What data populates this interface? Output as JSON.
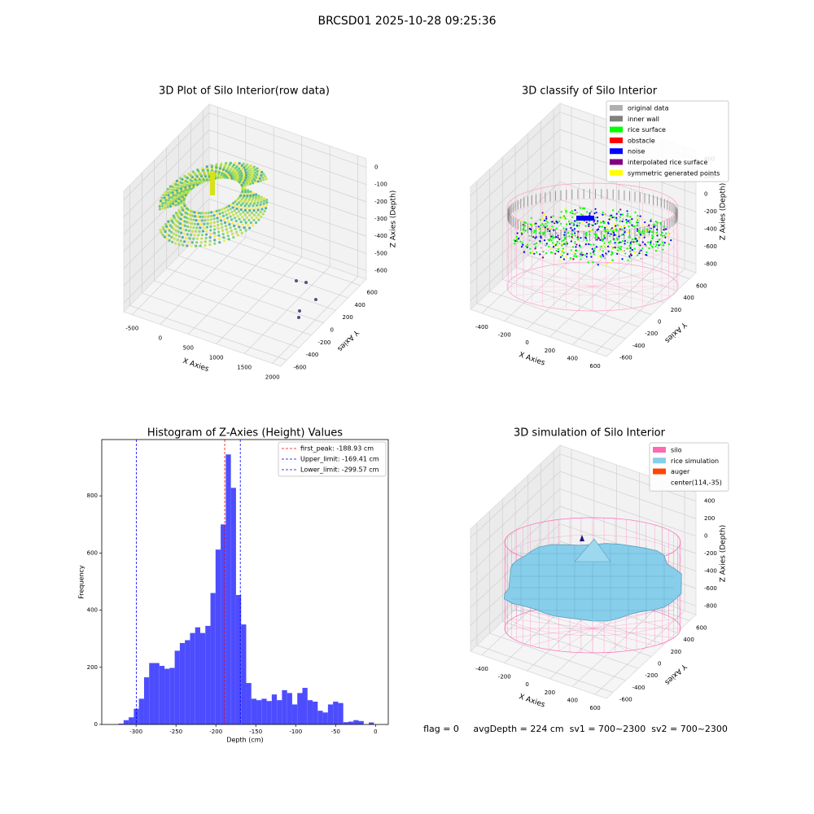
{
  "title": "BRCSD01 2025-10-28 09:25:36",
  "footer": "flag = 0     avgDepth = 224 cm  sv1 = 700~2300  sv2 = 700~2300",
  "chart_data": [
    {
      "type": "scatter3d",
      "title": "3D Plot of Silo Interior(row data)",
      "xlabel": "X Axies",
      "ylabel": "Y Axies",
      "zlabel": "Z Axies (Depth)",
      "xlim": [
        -650,
        2150
      ],
      "xticks": [
        -500,
        0,
        500,
        1000,
        1500,
        2000
      ],
      "ylim": [
        -700,
        700
      ],
      "yticks": [
        -600,
        -400,
        -200,
        0,
        200,
        400,
        600
      ],
      "zlim": [
        -650,
        50
      ],
      "zticks": [
        -600,
        -500,
        -400,
        -300,
        -200,
        -100,
        0
      ]
    },
    {
      "type": "scatter3d",
      "title": "3D classify of Silo Interior",
      "xlabel": "X Axies",
      "ylabel": "Y Axies",
      "zlabel": "Z Axies (Depth)",
      "xlim": [
        -500,
        700
      ],
      "xticks": [
        -400,
        -200,
        0,
        200,
        400,
        600
      ],
      "ylim": [
        -700,
        700
      ],
      "yticks": [
        -600,
        -400,
        -200,
        0,
        200,
        400,
        600
      ],
      "zlim": [
        -900,
        500
      ],
      "zticks": [
        -800,
        -600,
        -400,
        -200,
        0,
        200,
        400
      ],
      "legend": [
        {
          "name": "original data",
          "color": "#b0b0b0"
        },
        {
          "name": "inner wall",
          "color": "#808080"
        },
        {
          "name": "rice surface",
          "color": "#00ff00"
        },
        {
          "name": "obstacle",
          "color": "#ff0000"
        },
        {
          "name": "noise",
          "color": "#0000ff"
        },
        {
          "name": "interpolated rice surface",
          "color": "#800080"
        },
        {
          "name": "symmetric generated points",
          "color": "#ffff00"
        }
      ]
    },
    {
      "type": "histogram",
      "title": "Histogram of Z-Axies (Height) Values",
      "xlabel": "Depth (cm)",
      "ylabel": "Frequency",
      "color": "#4d4dff",
      "bins": [
        -322,
        -315.6,
        -309.2,
        -302.8,
        -296.4,
        -290,
        -283.6,
        -277.2,
        -270.8,
        -264.4,
        -258,
        -251.6,
        -245.2,
        -238.8,
        -232.4,
        -226,
        -219.6,
        -213.2,
        -206.8,
        -200.4,
        -194,
        -187.6,
        -181.2,
        -174.8,
        -168.4,
        -162,
        -155.6,
        -149.2,
        -142.8,
        -136.4,
        -130,
        -123.6,
        -117.2,
        -110.8,
        -104.4,
        -98,
        -91.6,
        -85.2,
        -78.8,
        -72.4,
        -66,
        -59.6,
        -53.2,
        -46.8,
        -40.4,
        -34,
        -27.6,
        -21.2,
        -14.8,
        -8.4,
        -2
      ],
      "values": [
        3,
        15,
        25,
        55,
        90,
        165,
        215,
        215,
        205,
        195,
        198,
        258,
        285,
        295,
        320,
        340,
        320,
        345,
        460,
        612,
        700,
        945,
        828,
        453,
        350,
        145,
        90,
        85,
        90,
        82,
        105,
        85,
        120,
        110,
        70,
        110,
        128,
        85,
        80,
        48,
        42,
        70,
        80,
        75,
        8,
        10,
        15,
        12,
        0,
        7
      ],
      "xlim": [
        -343,
        16
      ],
      "xticks": [
        -300,
        -250,
        -200,
        -150,
        -100,
        -50,
        0
      ],
      "ylim": [
        0,
        997
      ],
      "yticks": [
        0,
        200,
        400,
        600,
        800
      ],
      "lines": [
        {
          "name": "first_peak: -188.93 cm",
          "value": -188.93,
          "color": "#ff0000"
        },
        {
          "name": "Upper_limit: -169.41 cm",
          "value": -169.41,
          "color": "#0000ff"
        },
        {
          "name": "Lower_limit: -299.57 cm",
          "value": -299.57,
          "color": "#0000ff"
        }
      ],
      "legend_loc": "upper right"
    },
    {
      "type": "surface3d",
      "title": "3D simulation of Silo Interior",
      "xlabel": "X Axies",
      "ylabel": "Y Axies",
      "zlabel": "Z Axies (Depth)",
      "xlim": [
        -500,
        700
      ],
      "xticks": [
        -400,
        -200,
        0,
        200,
        400,
        600
      ],
      "ylim": [
        -700,
        700
      ],
      "yticks": [
        -600,
        -400,
        -200,
        0,
        200,
        400,
        600
      ],
      "zlim": [
        -900,
        500
      ],
      "zticks": [
        -800,
        -600,
        -400,
        -200,
        0,
        200,
        400
      ],
      "legend": [
        {
          "name": "silo",
          "color": "#ff69b4"
        },
        {
          "name": "rice simulation",
          "color": "#87ceeb"
        },
        {
          "name": "auger",
          "color": "#ff4500"
        },
        {
          "name": "center(114,-35)"
        }
      ]
    }
  ]
}
